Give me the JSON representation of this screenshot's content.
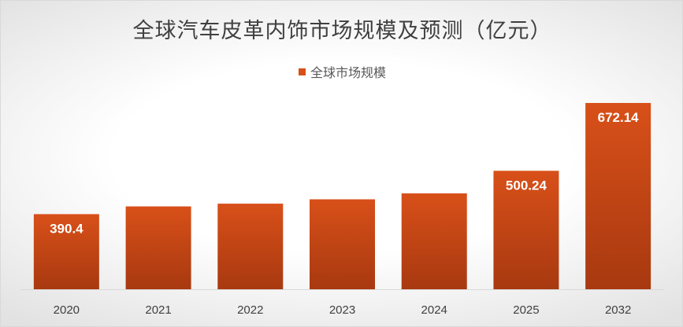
{
  "chart_data": {
    "type": "bar",
    "title": "全球汽车皮革内饰市场规模及预测（亿元）",
    "categories": [
      "2020",
      "2021",
      "2022",
      "2023",
      "2024",
      "2025",
      "2032"
    ],
    "series": [
      {
        "name": "全球市场规模",
        "values": [
          390.4,
          410,
          417,
          428,
          443,
          500.24,
          672.14
        ],
        "labels": [
          "390.4",
          "",
          "",
          "",
          "",
          "500.24",
          "672.14"
        ]
      }
    ],
    "ylim": [
      200,
      700
    ],
    "grid": false,
    "legend_position": "top",
    "colors": {
      "bar_top": "#d85019",
      "bar_bottom": "#a83910",
      "label": "#ffffff",
      "axis_text": "#404040",
      "baseline": "#d9d9d9"
    }
  }
}
